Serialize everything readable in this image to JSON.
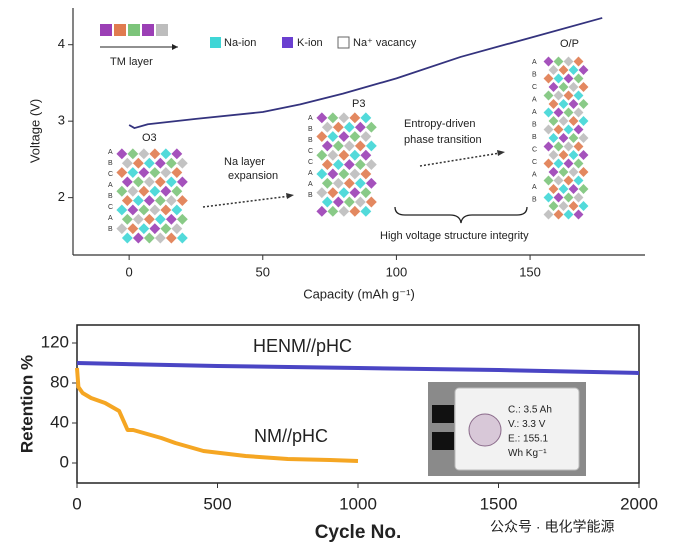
{
  "chart_data": [
    {
      "type": "line",
      "xlabel": "Capacity (mAh g⁻¹)",
      "ylabel": "Voltage (V)",
      "xlim": [
        -21,
        193
      ],
      "ylim": [
        1.25,
        4.48
      ],
      "xticks": [
        0,
        50,
        100,
        150
      ],
      "yticks": [
        2,
        3,
        4
      ],
      "series": [
        {
          "name": null,
          "color": "#34337e",
          "x": [
            0,
            2,
            7,
            25,
            50,
            64,
            80,
            100,
            124,
            150,
            177
          ],
          "values": [
            2.95,
            2.91,
            2.96,
            3.03,
            3.12,
            3.22,
            3.36,
            3.56,
            3.84,
            4.09,
            4.35
          ]
        }
      ],
      "annotations": [
        "TM layer",
        "Na-ion",
        "K-ion",
        "Na⁺ vacancy",
        "O3",
        "P3",
        "O/P",
        "Na layer",
        "expansion",
        "Entropy-driven",
        "phase transition",
        "High voltage structure integrity"
      ],
      "stacking": [
        [
          "A",
          "B",
          "C",
          "A",
          "B",
          "C",
          "A",
          "B"
        ],
        [
          "A",
          "B",
          "B",
          "C",
          "C",
          "A",
          "A",
          "B"
        ],
        [
          "A",
          "B",
          "C",
          "A",
          "A",
          "B",
          "B",
          "C",
          "C",
          "A",
          "A",
          "B"
        ]
      ]
    },
    {
      "type": "line",
      "xlabel": "Cycle No.",
      "ylabel": "Retention %",
      "xlim": [
        0,
        2000
      ],
      "ylim": [
        -20,
        138
      ],
      "xticks": [
        0,
        500,
        1000,
        1500,
        2000
      ],
      "yticks": [
        0,
        40,
        80,
        120
      ],
      "series": [
        {
          "name": "HENM//pHC",
          "color": "#4a45c4",
          "x": [
            0,
            500,
            1000,
            1500,
            2000
          ],
          "values": [
            100,
            97,
            95,
            93,
            90
          ]
        },
        {
          "name": "NM//pHC",
          "color": "#f5a623",
          "x": [
            0,
            5,
            20,
            50,
            100,
            150,
            180,
            200,
            250,
            300,
            350,
            450,
            600,
            750,
            900,
            1000
          ],
          "values": [
            95,
            76,
            70,
            65,
            60,
            52,
            33,
            33,
            29,
            25,
            20,
            12,
            7,
            4,
            3,
            2
          ]
        }
      ],
      "inset": [
        "C.: 3.5 Ah",
        "V.: 3.3 V",
        "E.: 155.1",
        "Wh Kg⁻¹"
      ],
      "watermark": "公众号 · 电化学能源"
    }
  ]
}
